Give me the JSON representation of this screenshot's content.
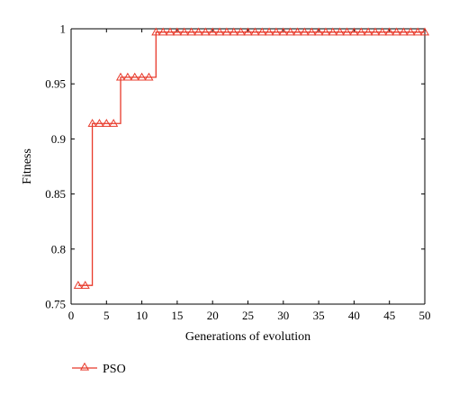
{
  "chart_data": {
    "type": "line",
    "title": "",
    "xlabel": "Generations of evolution",
    "ylabel": "Fitness",
    "xlim": [
      0,
      50
    ],
    "ylim": [
      0.75,
      1
    ],
    "x_ticks": [
      0,
      5,
      10,
      15,
      20,
      25,
      30,
      35,
      40,
      45,
      50
    ],
    "y_ticks": [
      0.75,
      0.8,
      0.85,
      0.9,
      0.95,
      1
    ],
    "y_tick_labels": [
      "0.75",
      "0.8",
      "0.85",
      "0.9",
      "0.95",
      "1"
    ],
    "grid": false,
    "legend_position": "bottom-left",
    "series": [
      {
        "name": "PSO",
        "color": "#e8392a",
        "marker": "triangle-open",
        "x": [
          1,
          2,
          3,
          4,
          5,
          6,
          7,
          8,
          9,
          10,
          11,
          12,
          13,
          14,
          15,
          16,
          17,
          18,
          19,
          20,
          21,
          22,
          23,
          24,
          25,
          26,
          27,
          28,
          29,
          30,
          31,
          32,
          33,
          34,
          35,
          36,
          37,
          38,
          39,
          40,
          41,
          42,
          43,
          44,
          45,
          46,
          47,
          48,
          49,
          50
        ],
        "values": [
          0.767,
          0.767,
          0.914,
          0.914,
          0.914,
          0.914,
          0.956,
          0.956,
          0.956,
          0.956,
          0.956,
          0.997,
          0.997,
          0.997,
          0.997,
          0.997,
          0.997,
          0.997,
          0.997,
          0.997,
          0.997,
          0.997,
          0.997,
          0.997,
          0.997,
          0.997,
          0.997,
          0.997,
          0.997,
          0.997,
          0.997,
          0.997,
          0.997,
          0.997,
          0.997,
          0.997,
          0.997,
          0.997,
          0.997,
          0.997,
          0.997,
          0.997,
          0.997,
          0.997,
          0.997,
          0.997,
          0.997,
          0.997,
          0.997,
          0.997
        ]
      }
    ]
  }
}
